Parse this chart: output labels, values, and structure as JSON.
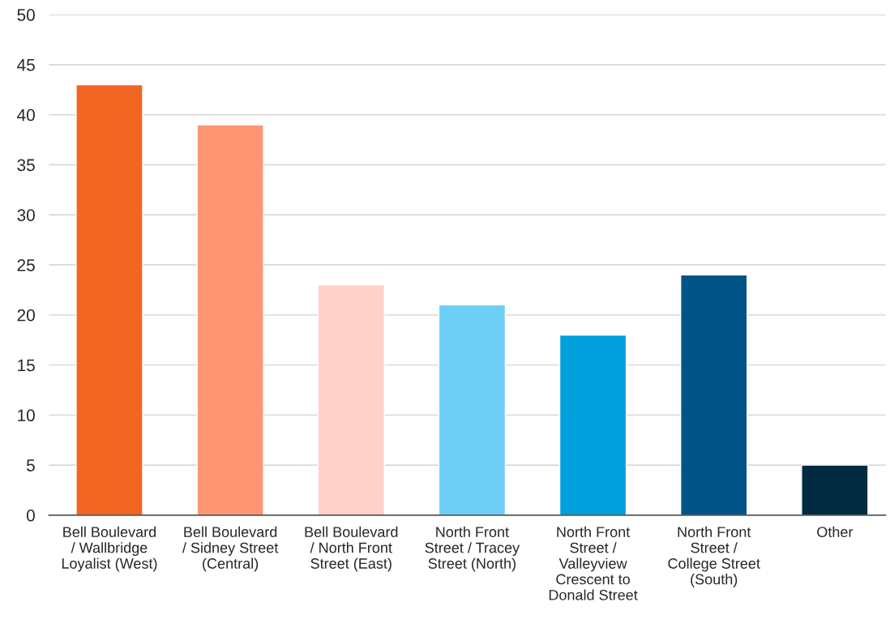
{
  "chart_data": {
    "type": "bar",
    "categories": [
      "Bell Boulevard / Wallbridge Loyalist (West)",
      "Bell Boulevard / Sidney Street (Central)",
      "Bell Boulevard / North Front Street (East)",
      "North Front Street / Tracey Street (North)",
      "North Front Street / Valleyview Crescent to Donald Street",
      "North Front Street / College Street (South)",
      "Other"
    ],
    "values": [
      43,
      39,
      23,
      21,
      18,
      24,
      5
    ],
    "colors": [
      "#f26522",
      "#ff9673",
      "#ffd1c9",
      "#6dcff6",
      "#00a0dc",
      "#005487",
      "#002b40"
    ],
    "ylim": [
      0,
      50
    ],
    "yticks": [
      0,
      5,
      10,
      15,
      20,
      25,
      30,
      35,
      40,
      45,
      50
    ],
    "grid": "y"
  }
}
